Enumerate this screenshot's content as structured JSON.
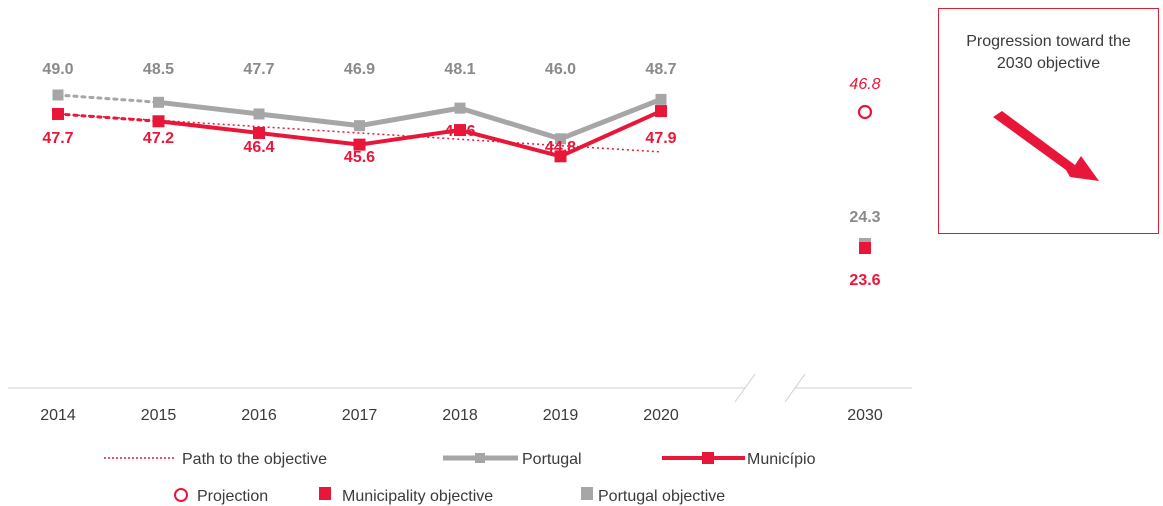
{
  "chart_data": {
    "type": "line",
    "categories": [
      "2014",
      "2015",
      "2016",
      "2017",
      "2018",
      "2019",
      "2020"
    ],
    "target_category": "2030",
    "series": [
      {
        "name": "Portugal",
        "values": [
          49.0,
          48.5,
          47.7,
          46.9,
          48.1,
          46.0,
          48.7
        ],
        "color": "#a6a6a6"
      },
      {
        "name": "Município",
        "values": [
          47.7,
          47.2,
          46.4,
          45.6,
          46.6,
          44.8,
          47.9
        ],
        "color": "#e8173a"
      }
    ],
    "path_to_objective": {
      "name": "Path to the objective",
      "from": [
        "2014",
        47.7
      ],
      "to": [
        "2020",
        45.1
      ],
      "color": "#e8173a",
      "style": "dotted"
    },
    "projection": {
      "name": "Projection",
      "category": "2030",
      "value": 46.8,
      "label": "46.8"
    },
    "municipality_objective": {
      "name": "Municipality objective",
      "category": "2030",
      "value": 23.6,
      "label": "23.6"
    },
    "portugal_objective": {
      "name": "Portugal objective",
      "category": "2030",
      "value": 24.3,
      "label": "24.3"
    },
    "axis_break": true,
    "legend_position": "bottom"
  },
  "info_box": {
    "text": "Progression toward the 2030 objective",
    "arrow": "arrow-down-right-icon",
    "accent": "#d81f36"
  }
}
